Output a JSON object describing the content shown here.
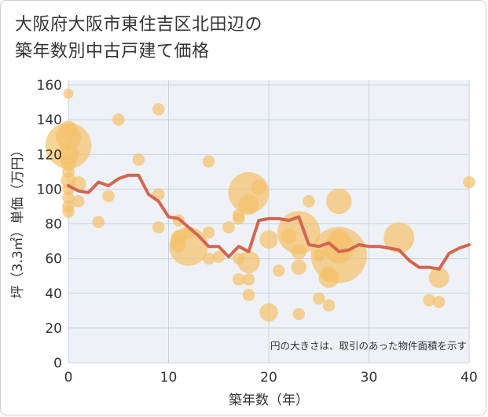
{
  "title_line1": "大阪府大阪市東住吉区北田辺の",
  "title_line2": "築年数別中古戸建て価格",
  "chart_data": {
    "type": "scatter",
    "title": "大阪府大阪市東住吉区北田辺の築年数別中古戸建て価格",
    "xlabel": "築年数（年）",
    "ylabel": "坪（3.3㎡）単価（万円）",
    "xlim": [
      0,
      40
    ],
    "ylim": [
      0,
      160
    ],
    "xticks": [
      0,
      10,
      20,
      30,
      40
    ],
    "yticks": [
      0,
      20,
      40,
      60,
      80,
      100,
      120,
      140,
      160
    ],
    "grid": true,
    "note": "円の大きさは、取引のあった物件面積を示す",
    "colors": {
      "bubble": "#f5c06a",
      "line": "#d4654f"
    },
    "bubbles": [
      {
        "x": 0,
        "y": 155,
        "s": 1
      },
      {
        "x": 0,
        "y": 125,
        "s": 4.5
      },
      {
        "x": 0,
        "y": 130,
        "s": 2.5
      },
      {
        "x": 0,
        "y": 135,
        "s": 1.5
      },
      {
        "x": 0,
        "y": 120,
        "s": 2
      },
      {
        "x": 0,
        "y": 115,
        "s": 1.5
      },
      {
        "x": 0,
        "y": 110,
        "s": 1.2
      },
      {
        "x": 0,
        "y": 105,
        "s": 1.5
      },
      {
        "x": 0,
        "y": 100,
        "s": 1.2
      },
      {
        "x": 0,
        "y": 95,
        "s": 1.2
      },
      {
        "x": 0,
        "y": 90,
        "s": 1.2
      },
      {
        "x": 0,
        "y": 87,
        "s": 1.2
      },
      {
        "x": 1,
        "y": 103,
        "s": 1.5
      },
      {
        "x": 1,
        "y": 93,
        "s": 1.2
      },
      {
        "x": 3,
        "y": 81,
        "s": 1.2
      },
      {
        "x": 4,
        "y": 96,
        "s": 1.2
      },
      {
        "x": 5,
        "y": 140,
        "s": 1.2
      },
      {
        "x": 7,
        "y": 117,
        "s": 1.2
      },
      {
        "x": 9,
        "y": 146,
        "s": 1.2
      },
      {
        "x": 9,
        "y": 97,
        "s": 1.2
      },
      {
        "x": 9,
        "y": 78,
        "s": 1.2
      },
      {
        "x": 11,
        "y": 82,
        "s": 1.2
      },
      {
        "x": 11,
        "y": 72,
        "s": 1.5
      },
      {
        "x": 11,
        "y": 68,
        "s": 1.5
      },
      {
        "x": 12,
        "y": 67,
        "s": 3.8
      },
      {
        "x": 12,
        "y": 75,
        "s": 1.2
      },
      {
        "x": 14,
        "y": 116,
        "s": 1.2
      },
      {
        "x": 14,
        "y": 75,
        "s": 1.2
      },
      {
        "x": 14,
        "y": 60,
        "s": 1.2
      },
      {
        "x": 15,
        "y": 61,
        "s": 1.2
      },
      {
        "x": 16,
        "y": 78,
        "s": 1.2
      },
      {
        "x": 17,
        "y": 85,
        "s": 1.2
      },
      {
        "x": 17,
        "y": 83,
        "s": 1.2
      },
      {
        "x": 17,
        "y": 60,
        "s": 1.2
      },
      {
        "x": 17,
        "y": 48,
        "s": 1.2
      },
      {
        "x": 18,
        "y": 98,
        "s": 4
      },
      {
        "x": 18,
        "y": 91,
        "s": 2
      },
      {
        "x": 18,
        "y": 58,
        "s": 2.2
      },
      {
        "x": 18,
        "y": 48,
        "s": 1.2
      },
      {
        "x": 18,
        "y": 39,
        "s": 1.2
      },
      {
        "x": 19,
        "y": 101,
        "s": 1.5
      },
      {
        "x": 20,
        "y": 71,
        "s": 1.8
      },
      {
        "x": 20,
        "y": 29,
        "s": 1.8
      },
      {
        "x": 21,
        "y": 53,
        "s": 1.2
      },
      {
        "x": 22,
        "y": 73,
        "s": 1.5
      },
      {
        "x": 23,
        "y": 75,
        "s": 4.2
      },
      {
        "x": 23,
        "y": 64,
        "s": 1.5
      },
      {
        "x": 23,
        "y": 55,
        "s": 1.5
      },
      {
        "x": 23,
        "y": 28,
        "s": 1.2
      },
      {
        "x": 24,
        "y": 93,
        "s": 1.2
      },
      {
        "x": 25,
        "y": 62,
        "s": 1.2
      },
      {
        "x": 25,
        "y": 37,
        "s": 1.2
      },
      {
        "x": 26,
        "y": 49,
        "s": 2
      },
      {
        "x": 26,
        "y": 51,
        "s": 1.5
      },
      {
        "x": 26,
        "y": 33,
        "s": 1.2
      },
      {
        "x": 27,
        "y": 93,
        "s": 2.5
      },
      {
        "x": 27,
        "y": 71,
        "s": 2
      },
      {
        "x": 27,
        "y": 66,
        "s": 3
      },
      {
        "x": 27,
        "y": 62,
        "s": 5.5
      },
      {
        "x": 33,
        "y": 72,
        "s": 3
      },
      {
        "x": 36,
        "y": 36,
        "s": 1.2
      },
      {
        "x": 37,
        "y": 49,
        "s": 2
      },
      {
        "x": 37,
        "y": 35,
        "s": 1.2
      },
      {
        "x": 40,
        "y": 104,
        "s": 1.2
      }
    ],
    "line": {
      "x": [
        0,
        1,
        2,
        3,
        4,
        5,
        6,
        7,
        8,
        9,
        10,
        11,
        12,
        13,
        14,
        15,
        16,
        17,
        18,
        19,
        20,
        21,
        22,
        23,
        24,
        25,
        26,
        27,
        28,
        29,
        30,
        31,
        32,
        33,
        34,
        35,
        36,
        37,
        38,
        39,
        40
      ],
      "y": [
        102,
        99,
        98,
        104,
        102,
        106,
        108,
        108,
        97,
        93,
        84,
        83,
        78,
        73,
        67,
        67,
        61,
        67,
        64,
        82,
        83,
        83,
        82,
        84,
        68,
        67,
        69,
        64,
        65,
        68,
        67,
        67,
        66,
        65,
        59,
        55,
        55,
        54,
        63,
        66,
        68
      ]
    }
  }
}
